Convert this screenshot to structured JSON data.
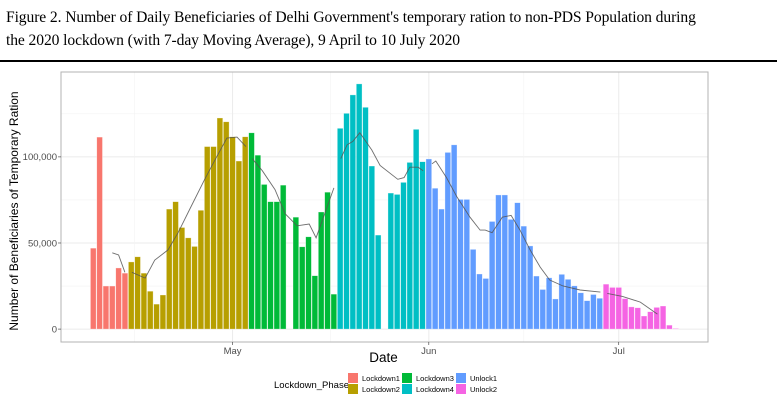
{
  "caption": {
    "line1": "Figure 2. Number of Daily Beneficiaries of Delhi Government's temporary ration to non-PDS Population during",
    "line2": "the 2020 lockdown (with 7-day Moving Average), 9 April to 10 July 2020"
  },
  "chart_data": {
    "type": "bar",
    "title": "Number of Daily Beneficiaries of Delhi Government's temporary ration to non-PDS Population during the 2020 lockdown (with 7-day Moving Average), 9 April to 10 July 2020",
    "xlabel": "Date",
    "ylabel": "Number of Beneficiaries of Temporary Ration",
    "start_date": "2020-04-09",
    "end_date": "2020-07-10",
    "x_unit": "days since 2020-04-09",
    "xlim": [
      -5.1,
      97.1
    ],
    "ylim": [
      -7500,
      149300
    ],
    "grid": true,
    "x_ticks": [
      {
        "label": "May",
        "day": 22
      },
      {
        "label": "Jun",
        "day": 53
      },
      {
        "label": "Jul",
        "day": 83
      }
    ],
    "y_ticks": [
      {
        "label": "0",
        "value": 0
      },
      {
        "label": "50,000",
        "value": 50000
      },
      {
        "label": "100,000",
        "value": 100000
      }
    ],
    "y_minor_grid": [
      25000,
      75000,
      125000
    ],
    "x_minor_grid_days": [
      6.5,
      37.5,
      68
    ],
    "legend": {
      "title": "Lockdown_Phase",
      "position": "bottom",
      "entries": [
        {
          "name": "Lockdown1",
          "color": "#F8766D"
        },
        {
          "name": "Lockdown2",
          "color": "#B79F00"
        },
        {
          "name": "Lockdown3",
          "color": "#00BA38"
        },
        {
          "name": "Lockdown4",
          "color": "#00BFC4"
        },
        {
          "name": "Unlock1",
          "color": "#619CFF"
        },
        {
          "name": "Unlock2",
          "color": "#F564E3"
        }
      ]
    },
    "series": [
      {
        "name": "Lockdown1",
        "start_day": 0,
        "values": [
          47000,
          111500,
          25000,
          25000,
          35500,
          32500
        ]
      },
      {
        "name": "Lockdown2",
        "start_day": 6,
        "values": [
          39000,
          42000,
          32500,
          22000,
          14500,
          19800,
          69700,
          74000,
          59000,
          53000,
          48000,
          69000,
          106000,
          106000,
          122600,
          120400,
          111700,
          97600,
          111700
        ]
      },
      {
        "name": "Lockdown3",
        "start_day": 25,
        "values": [
          114000,
          101000,
          84000,
          74000,
          74000,
          83600,
          null,
          65000,
          47800,
          53600,
          31000,
          68000,
          79500,
          20300
        ]
      },
      {
        "name": "Lockdown4",
        "start_day": 39,
        "values": [
          116600,
          125300,
          136000,
          142400,
          128800,
          94700,
          54600,
          null,
          79000,
          78200,
          85200,
          96800,
          116000,
          97200
        ]
      },
      {
        "name": "Unlock1",
        "start_day": 53,
        "values": [
          98800,
          81800,
          69700,
          102600,
          107000,
          75300,
          75300,
          46300,
          32000,
          29400,
          62500,
          77900,
          77900,
          63700,
          73400,
          59800,
          48300,
          30800,
          23000,
          29800,
          17500,
          31800,
          28900,
          25100,
          21100,
          16500,
          20100,
          17900
        ]
      },
      {
        "name": "Unlock2",
        "start_day": 81,
        "values": [
          26100,
          24200,
          24200,
          17700,
          12900,
          12400,
          7600,
          10100,
          12600,
          13400,
          2300,
          400
        ]
      }
    ],
    "moving_average": {
      "name": "7-day Moving Average",
      "color": "#555555",
      "segments": [
        {
          "phase": "Lockdown1",
          "points": [
            [
              3,
              44300
            ],
            [
              4,
              43000
            ],
            [
              5,
              33000
            ]
          ]
        },
        {
          "phase": "Lockdown2",
          "points": [
            [
              6.1,
              33000
            ],
            [
              8.2,
              29600
            ],
            [
              9.7,
              40000
            ],
            [
              11.8,
              46000
            ],
            [
              13.4,
              56000
            ],
            [
              15.3,
              70000
            ],
            [
              17.6,
              87000
            ],
            [
              19.2,
              98000
            ],
            [
              21.1,
              111000
            ],
            [
              22.7,
              111500
            ],
            [
              24.1,
              106000
            ]
          ]
        },
        {
          "phase": "Lockdown3",
          "points": [
            [
              25.1,
              99000
            ],
            [
              26.7,
              92000
            ],
            [
              28.7,
              81000
            ],
            [
              30.3,
              67000
            ],
            [
              32.2,
              60000
            ],
            [
              34.1,
              61000
            ],
            [
              35.2,
              53000
            ],
            [
              38.0,
              82000
            ]
          ]
        },
        {
          "phase": "Lockdown4",
          "points": [
            [
              39.1,
              99000
            ],
            [
              40.1,
              107000
            ],
            [
              41.0,
              109000
            ],
            [
              42.1,
              114000
            ],
            [
              44.0,
              104000
            ],
            [
              45.3,
              95000
            ],
            [
              48.1,
              87000
            ],
            [
              49.1,
              88000
            ],
            [
              50.0,
              94000
            ],
            [
              51.3,
              94000
            ],
            [
              52.1,
              92000
            ]
          ]
        },
        {
          "phase": "Unlock1",
          "points": [
            [
              53.5,
              96000
            ],
            [
              54.1,
              97600
            ],
            [
              55.8,
              88000
            ],
            [
              57.4,
              77000
            ],
            [
              59.5,
              65000
            ],
            [
              61.1,
              57500
            ],
            [
              61.9,
              57500
            ],
            [
              63.0,
              56000
            ],
            [
              64.6,
              65000
            ],
            [
              66.0,
              66000
            ],
            [
              67.4,
              57500
            ],
            [
              69.0,
              46000
            ],
            [
              70.6,
              36000
            ],
            [
              72.1,
              28500
            ],
            [
              74.2,
              25000
            ],
            [
              76.9,
              22700
            ],
            [
              80.1,
              21500
            ]
          ]
        },
        {
          "phase": "Unlock2",
          "points": [
            [
              81.2,
              20700
            ],
            [
              83.6,
              19000
            ],
            [
              86.4,
              15700
            ],
            [
              89.1,
              8700
            ]
          ]
        }
      ]
    }
  }
}
